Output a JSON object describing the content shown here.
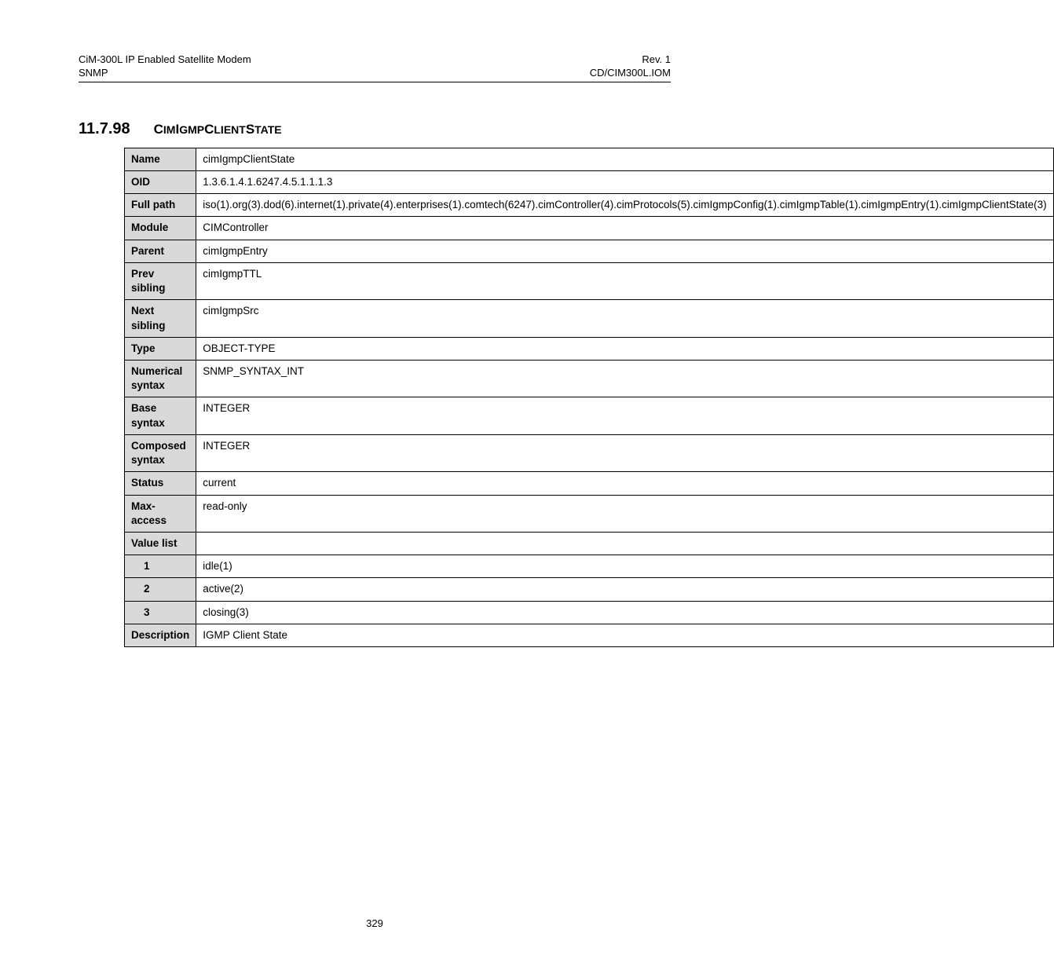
{
  "header": {
    "left_line1": "CiM-300L IP Enabled Satellite Modem",
    "left_line2": "SNMP",
    "right_line1": "Rev. 1",
    "right_line2": "CD/CIM300L.IOM"
  },
  "section": {
    "number": "11.7.98",
    "title_parts": [
      "C",
      "IM",
      "I",
      "GMP",
      "C",
      "LIENT",
      "S",
      "TATE"
    ]
  },
  "table": {
    "rows": [
      {
        "label": "Name",
        "value": "cimIgmpClientState",
        "indent": false
      },
      {
        "label": "OID",
        "value": "1.3.6.1.4.1.6247.4.5.1.1.1.3",
        "indent": false
      },
      {
        "label": "Full path",
        "value": "iso(1).org(3).dod(6).internet(1).private(4).enterprises(1).comtech(6247).cimController(4).cimProtocols(5).cimIgmpConfig(1).cimIgmpTable(1).cimIgmpEntry(1).cimIgmpClientState(3)",
        "indent": false
      },
      {
        "label": "Module",
        "value": "CIMController",
        "indent": false
      },
      {
        "label": "Parent",
        "value": "cimIgmpEntry",
        "indent": false
      },
      {
        "label": "Prev sibling",
        "value": "cimIgmpTTL",
        "indent": false
      },
      {
        "label": "Next sibling",
        "value": "cimIgmpSrc",
        "indent": false
      },
      {
        "label": "Type",
        "value": "OBJECT-TYPE",
        "indent": false
      },
      {
        "label": "Numerical syntax",
        "value": "SNMP_SYNTAX_INT",
        "indent": false
      },
      {
        "label": "Base syntax",
        "value": "INTEGER",
        "indent": false
      },
      {
        "label": "Composed syntax",
        "value": "INTEGER",
        "indent": false
      },
      {
        "label": "Status",
        "value": "current",
        "indent": false
      },
      {
        "label": "Max-access",
        "value": "read-only",
        "indent": false
      },
      {
        "label": "Value list",
        "value": "",
        "indent": false
      },
      {
        "label": "1",
        "value": "idle(1)",
        "indent": true
      },
      {
        "label": "2",
        "value": "active(2)",
        "indent": true
      },
      {
        "label": "3",
        "value": "closing(3)",
        "indent": true
      },
      {
        "label": "Description",
        "value": "IGMP Client State",
        "indent": false
      }
    ]
  },
  "page_number": "329"
}
